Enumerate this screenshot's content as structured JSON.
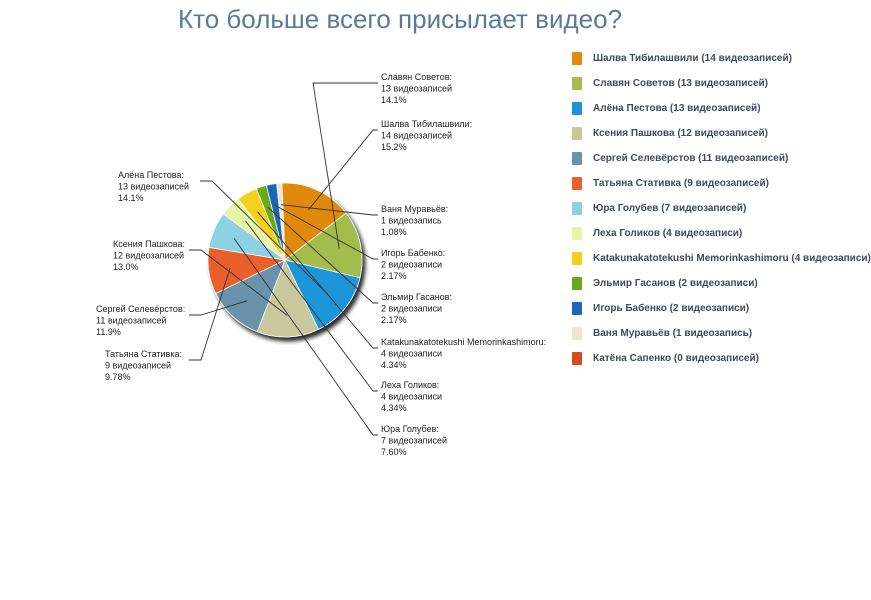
{
  "chart_data": {
    "type": "pie",
    "title": "Кто больше всего присылает видео?",
    "slices": [
      {
        "legend": "Шалва Тибилашвили (14 видеозаписей)",
        "label": [
          "Шалва Тибилашвили:",
          "14 видеозаписей",
          "15.2%"
        ],
        "value": 14,
        "percent": 15.2,
        "color": "#e08a10"
      },
      {
        "legend": "Славян Советов (13 видеозаписей)",
        "label": [
          "Славян Советов:",
          "13 видеозаписей",
          "14.1%"
        ],
        "value": 13,
        "percent": 14.1,
        "color": "#a3bd4d"
      },
      {
        "legend": "Алёна Пестова (13 видеозаписей)",
        "label": [
          "Алёна Пестова:",
          "13 видеозаписей",
          "14.1%"
        ],
        "value": 13,
        "percent": 14.1,
        "color": "#1a95d9"
      },
      {
        "legend": "Ксения Пашкова (12 видеозаписей)",
        "label": [
          "Ксения Пашкова:",
          "12 видеозаписей",
          "13.0%"
        ],
        "value": 12,
        "percent": 13.0,
        "color": "#c9c79c"
      },
      {
        "legend": "Сергей Селевёрстов (11 видеозаписей)",
        "label": [
          "Сергей Селевёрстов:",
          "11 видеозаписей",
          "11.9%"
        ],
        "value": 11,
        "percent": 11.9,
        "color": "#6893aa"
      },
      {
        "legend": "Татьяна Стативка (9 видеозаписей)",
        "label": [
          "Татьяна Стативка:",
          "9 видеозаписей",
          "9.78%"
        ],
        "value": 9,
        "percent": 9.78,
        "color": "#e9602a"
      },
      {
        "legend": "Юра Голубев (7 видеозаписей)",
        "label": [
          "Юра Голубев:",
          "7 видеозаписей",
          "7.60%"
        ],
        "value": 7,
        "percent": 7.6,
        "color": "#8dd1e5"
      },
      {
        "legend": "Леха Голиков (4 видеозаписи)",
        "label": [
          "Леха Голиков:",
          "4 видеозаписи",
          "4.34%"
        ],
        "value": 4,
        "percent": 4.34,
        "color": "#e6f5a3"
      },
      {
        "legend": "Katakunakatotekushi Memorinkashimoru (4 видеозаписи)",
        "label": [
          "Katakunakatotekushi Memorinkashimoru:",
          "4 видеозаписи",
          "4.34%"
        ],
        "value": 4,
        "percent": 4.34,
        "color": "#f3d11a"
      },
      {
        "legend": "Эльмир Гасанов (2 видеозаписи)",
        "label": [
          "Эльмир Гасанов:",
          "2 видеозаписи",
          "2.17%"
        ],
        "value": 2,
        "percent": 2.17,
        "color": "#6aa81e"
      },
      {
        "legend": "Игорь Бабенко (2 видеозаписи)",
        "label": [
          "Игорь Бабенко:",
          "2 видеозаписи",
          "2.17%"
        ],
        "value": 2,
        "percent": 2.17,
        "color": "#1b68b8"
      },
      {
        "legend": "Ваня Муравьёв (1 видеозапись)",
        "label": [
          "Ваня Муравьёв:",
          "1 видеозапись",
          "1.08%"
        ],
        "value": 1,
        "percent": 1.08,
        "color": "#ece7cc"
      },
      {
        "legend": "Катёна Сапенко (0 видеозаписей)",
        "value": 0,
        "percent": 0,
        "color": "#d64a1c"
      }
    ],
    "legend_position": "right"
  }
}
